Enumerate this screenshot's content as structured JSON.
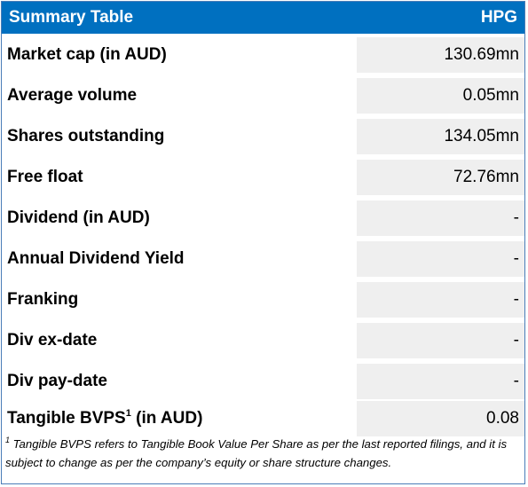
{
  "header": {
    "title": "Summary Table",
    "ticker": "HPG"
  },
  "rows": [
    {
      "label": "Market cap (in AUD)",
      "value": "130.69mn"
    },
    {
      "label": "Average volume",
      "value": "0.05mn"
    },
    {
      "label": "Shares outstanding",
      "value": "134.05mn"
    },
    {
      "label": "Free float",
      "value": "72.76mn"
    },
    {
      "label": "Dividend (in AUD)",
      "value": "-"
    },
    {
      "label": "Annual Dividend Yield",
      "value": "-"
    },
    {
      "label": "Franking",
      "value": "-"
    },
    {
      "label": "Div ex-date",
      "value": "-"
    },
    {
      "label": "Div pay-date",
      "value": "-"
    },
    {
      "label_prefix": "Tangible BVPS",
      "label_sup": "1",
      "label_suffix": " (in AUD)",
      "value": "0.08"
    }
  ],
  "footnote": {
    "marker": "1",
    "text": " Tangible BVPS refers to Tangible Book Value Per Share as per the last reported filings, and it is subject to change as per the company’s equity or share structure changes."
  },
  "colors": {
    "header_bg": "#0070c0",
    "header_text": "#ffffff",
    "value_cell_bg": "#efefef",
    "border": "#4a7db8"
  }
}
